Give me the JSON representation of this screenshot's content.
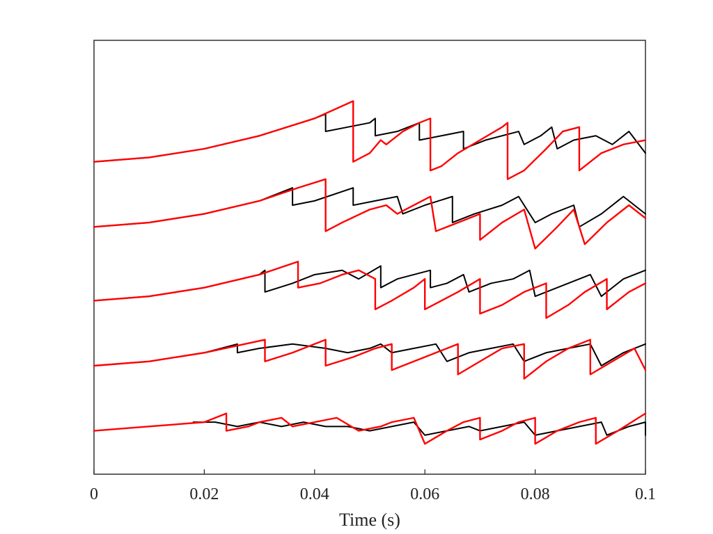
{
  "chart_data": {
    "type": "line",
    "title": "",
    "xlabel": "Time (s)",
    "ylabel": "",
    "xlim": [
      0,
      0.1
    ],
    "ylim": [
      0,
      1
    ],
    "grid": false,
    "legend": "none",
    "x_ticks": [
      0,
      0.02,
      0.04,
      0.06,
      0.08,
      0.1
    ],
    "x_tick_labels": [
      "0",
      "0.02",
      "0.04",
      "0.06",
      "0.08",
      "0.1"
    ],
    "colors": {
      "black": "#000000",
      "red": "#ff0000",
      "axis": "#222222"
    },
    "series": [
      {
        "color": "#000000",
        "values": [
          [
            0,
            0.72
          ],
          [
            0.01,
            0.73
          ],
          [
            0.02,
            0.75
          ],
          [
            0.03,
            0.78
          ],
          [
            0.04,
            0.82
          ],
          [
            0.042,
            0.83
          ],
          [
            0.042,
            0.79
          ],
          [
            0.046,
            0.8
          ],
          [
            0.05,
            0.81
          ],
          [
            0.051,
            0.82
          ],
          [
            0.051,
            0.78
          ],
          [
            0.055,
            0.79
          ],
          [
            0.059,
            0.81
          ],
          [
            0.059,
            0.77
          ],
          [
            0.063,
            0.78
          ],
          [
            0.067,
            0.79
          ],
          [
            0.067,
            0.75
          ],
          [
            0.071,
            0.77
          ],
          [
            0.077,
            0.79
          ],
          [
            0.078,
            0.76
          ],
          [
            0.081,
            0.78
          ],
          [
            0.083,
            0.8
          ],
          [
            0.084,
            0.75
          ],
          [
            0.087,
            0.77
          ],
          [
            0.091,
            0.78
          ],
          [
            0.094,
            0.76
          ],
          [
            0.097,
            0.79
          ],
          [
            0.1,
            0.74
          ]
        ]
      },
      {
        "color": "#ff0000",
        "values": [
          [
            0,
            0.72
          ],
          [
            0.01,
            0.73
          ],
          [
            0.02,
            0.75
          ],
          [
            0.03,
            0.78
          ],
          [
            0.04,
            0.82
          ],
          [
            0.047,
            0.86
          ],
          [
            0.047,
            0.72
          ],
          [
            0.05,
            0.74
          ],
          [
            0.052,
            0.77
          ],
          [
            0.053,
            0.76
          ],
          [
            0.056,
            0.79
          ],
          [
            0.059,
            0.81
          ],
          [
            0.061,
            0.82
          ],
          [
            0.061,
            0.7
          ],
          [
            0.063,
            0.71
          ],
          [
            0.066,
            0.74
          ],
          [
            0.07,
            0.77
          ],
          [
            0.074,
            0.8
          ],
          [
            0.075,
            0.81
          ],
          [
            0.075,
            0.68
          ],
          [
            0.078,
            0.7
          ],
          [
            0.082,
            0.75
          ],
          [
            0.085,
            0.79
          ],
          [
            0.088,
            0.8
          ],
          [
            0.088,
            0.7
          ],
          [
            0.092,
            0.74
          ],
          [
            0.096,
            0.76
          ],
          [
            0.1,
            0.77
          ]
        ]
      },
      {
        "color": "#000000",
        "values": [
          [
            0,
            0.57
          ],
          [
            0.01,
            0.58
          ],
          [
            0.02,
            0.6
          ],
          [
            0.03,
            0.63
          ],
          [
            0.036,
            0.66
          ],
          [
            0.036,
            0.62
          ],
          [
            0.04,
            0.63
          ],
          [
            0.047,
            0.66
          ],
          [
            0.047,
            0.62
          ],
          [
            0.051,
            0.63
          ],
          [
            0.055,
            0.64
          ],
          [
            0.056,
            0.6
          ],
          [
            0.06,
            0.62
          ],
          [
            0.065,
            0.64
          ],
          [
            0.065,
            0.58
          ],
          [
            0.069,
            0.6
          ],
          [
            0.074,
            0.62
          ],
          [
            0.077,
            0.64
          ],
          [
            0.08,
            0.58
          ],
          [
            0.083,
            0.6
          ],
          [
            0.087,
            0.62
          ],
          [
            0.088,
            0.57
          ],
          [
            0.092,
            0.6
          ],
          [
            0.096,
            0.64
          ],
          [
            0.1,
            0.6
          ]
        ]
      },
      {
        "color": "#ff0000",
        "values": [
          [
            0,
            0.57
          ],
          [
            0.01,
            0.58
          ],
          [
            0.02,
            0.6
          ],
          [
            0.03,
            0.63
          ],
          [
            0.037,
            0.66
          ],
          [
            0.042,
            0.68
          ],
          [
            0.042,
            0.56
          ],
          [
            0.045,
            0.58
          ],
          [
            0.05,
            0.61
          ],
          [
            0.053,
            0.62
          ],
          [
            0.055,
            0.6
          ],
          [
            0.058,
            0.62
          ],
          [
            0.061,
            0.64
          ],
          [
            0.062,
            0.56
          ],
          [
            0.066,
            0.58
          ],
          [
            0.07,
            0.6
          ],
          [
            0.07,
            0.54
          ],
          [
            0.074,
            0.58
          ],
          [
            0.078,
            0.61
          ],
          [
            0.08,
            0.52
          ],
          [
            0.084,
            0.57
          ],
          [
            0.087,
            0.61
          ],
          [
            0.089,
            0.53
          ],
          [
            0.093,
            0.58
          ],
          [
            0.097,
            0.62
          ],
          [
            0.1,
            0.59
          ]
        ]
      },
      {
        "color": "#000000",
        "values": [
          [
            0,
            0.4
          ],
          [
            0.01,
            0.41
          ],
          [
            0.02,
            0.43
          ],
          [
            0.03,
            0.46
          ],
          [
            0.031,
            0.47
          ],
          [
            0.031,
            0.42
          ],
          [
            0.036,
            0.44
          ],
          [
            0.04,
            0.46
          ],
          [
            0.045,
            0.47
          ],
          [
            0.048,
            0.45
          ],
          [
            0.052,
            0.48
          ],
          [
            0.052,
            0.43
          ],
          [
            0.055,
            0.45
          ],
          [
            0.061,
            0.47
          ],
          [
            0.061,
            0.43
          ],
          [
            0.064,
            0.44
          ],
          [
            0.067,
            0.46
          ],
          [
            0.068,
            0.42
          ],
          [
            0.072,
            0.44
          ],
          [
            0.076,
            0.45
          ],
          [
            0.079,
            0.47
          ],
          [
            0.08,
            0.41
          ],
          [
            0.084,
            0.43
          ],
          [
            0.09,
            0.46
          ],
          [
            0.092,
            0.41
          ],
          [
            0.096,
            0.45
          ],
          [
            0.1,
            0.47
          ]
        ]
      },
      {
        "color": "#ff0000",
        "values": [
          [
            0,
            0.4
          ],
          [
            0.01,
            0.41
          ],
          [
            0.02,
            0.43
          ],
          [
            0.03,
            0.46
          ],
          [
            0.037,
            0.49
          ],
          [
            0.037,
            0.43
          ],
          [
            0.041,
            0.44
          ],
          [
            0.045,
            0.46
          ],
          [
            0.048,
            0.47
          ],
          [
            0.051,
            0.45
          ],
          [
            0.051,
            0.38
          ],
          [
            0.054,
            0.4
          ],
          [
            0.058,
            0.43
          ],
          [
            0.06,
            0.45
          ],
          [
            0.06,
            0.38
          ],
          [
            0.063,
            0.4
          ],
          [
            0.066,
            0.42
          ],
          [
            0.07,
            0.45
          ],
          [
            0.07,
            0.37
          ],
          [
            0.074,
            0.39
          ],
          [
            0.078,
            0.42
          ],
          [
            0.082,
            0.44
          ],
          [
            0.082,
            0.36
          ],
          [
            0.086,
            0.39
          ],
          [
            0.089,
            0.42
          ],
          [
            0.093,
            0.45
          ],
          [
            0.093,
            0.38
          ],
          [
            0.097,
            0.42
          ],
          [
            0.1,
            0.44
          ]
        ]
      },
      {
        "color": "#000000",
        "values": [
          [
            0,
            0.25
          ],
          [
            0.01,
            0.26
          ],
          [
            0.02,
            0.28
          ],
          [
            0.026,
            0.3
          ],
          [
            0.026,
            0.28
          ],
          [
            0.03,
            0.29
          ],
          [
            0.036,
            0.3
          ],
          [
            0.042,
            0.29
          ],
          [
            0.046,
            0.28
          ],
          [
            0.05,
            0.29
          ],
          [
            0.052,
            0.3
          ],
          [
            0.054,
            0.28
          ],
          [
            0.058,
            0.29
          ],
          [
            0.062,
            0.3
          ],
          [
            0.064,
            0.26
          ],
          [
            0.068,
            0.28
          ],
          [
            0.072,
            0.29
          ],
          [
            0.076,
            0.3
          ],
          [
            0.078,
            0.26
          ],
          [
            0.082,
            0.28
          ],
          [
            0.086,
            0.29
          ],
          [
            0.09,
            0.3
          ],
          [
            0.092,
            0.25
          ],
          [
            0.096,
            0.28
          ],
          [
            0.1,
            0.3
          ]
        ]
      },
      {
        "color": "#ff0000",
        "values": [
          [
            0,
            0.25
          ],
          [
            0.01,
            0.26
          ],
          [
            0.02,
            0.28
          ],
          [
            0.031,
            0.31
          ],
          [
            0.031,
            0.26
          ],
          [
            0.036,
            0.28
          ],
          [
            0.04,
            0.3
          ],
          [
            0.042,
            0.31
          ],
          [
            0.042,
            0.25
          ],
          [
            0.047,
            0.27
          ],
          [
            0.051,
            0.29
          ],
          [
            0.054,
            0.3
          ],
          [
            0.054,
            0.24
          ],
          [
            0.058,
            0.26
          ],
          [
            0.062,
            0.28
          ],
          [
            0.066,
            0.3
          ],
          [
            0.066,
            0.23
          ],
          [
            0.07,
            0.26
          ],
          [
            0.074,
            0.29
          ],
          [
            0.078,
            0.3
          ],
          [
            0.078,
            0.22
          ],
          [
            0.082,
            0.26
          ],
          [
            0.086,
            0.29
          ],
          [
            0.09,
            0.31
          ],
          [
            0.09,
            0.23
          ],
          [
            0.094,
            0.26
          ],
          [
            0.098,
            0.29
          ],
          [
            0.1,
            0.24
          ]
        ]
      },
      {
        "color": "#000000",
        "values": [
          [
            0.018,
            0.12
          ],
          [
            0.022,
            0.12
          ],
          [
            0.026,
            0.11
          ],
          [
            0.03,
            0.12
          ],
          [
            0.034,
            0.11
          ],
          [
            0.038,
            0.12
          ],
          [
            0.042,
            0.11
          ],
          [
            0.046,
            0.11
          ],
          [
            0.05,
            0.1
          ],
          [
            0.054,
            0.11
          ],
          [
            0.058,
            0.12
          ],
          [
            0.06,
            0.09
          ],
          [
            0.064,
            0.1
          ],
          [
            0.068,
            0.11
          ],
          [
            0.07,
            0.1
          ],
          [
            0.074,
            0.11
          ],
          [
            0.078,
            0.12
          ],
          [
            0.08,
            0.09
          ],
          [
            0.084,
            0.1
          ],
          [
            0.088,
            0.11
          ],
          [
            0.092,
            0.12
          ],
          [
            0.093,
            0.09
          ],
          [
            0.097,
            0.11
          ],
          [
            0.1,
            0.12
          ],
          [
            0.1,
            0.09
          ]
        ]
      },
      {
        "color": "#ff0000",
        "values": [
          [
            0,
            0.1
          ],
          [
            0.01,
            0.11
          ],
          [
            0.02,
            0.12
          ],
          [
            0.024,
            0.14
          ],
          [
            0.024,
            0.1
          ],
          [
            0.028,
            0.11
          ],
          [
            0.03,
            0.12
          ],
          [
            0.034,
            0.13
          ],
          [
            0.036,
            0.11
          ],
          [
            0.04,
            0.12
          ],
          [
            0.044,
            0.13
          ],
          [
            0.048,
            0.1
          ],
          [
            0.052,
            0.11
          ],
          [
            0.054,
            0.12
          ],
          [
            0.058,
            0.13
          ],
          [
            0.06,
            0.07
          ],
          [
            0.064,
            0.1
          ],
          [
            0.067,
            0.12
          ],
          [
            0.07,
            0.13
          ],
          [
            0.07,
            0.08
          ],
          [
            0.074,
            0.1
          ],
          [
            0.077,
            0.12
          ],
          [
            0.08,
            0.13
          ],
          [
            0.08,
            0.07
          ],
          [
            0.084,
            0.1
          ],
          [
            0.088,
            0.12
          ],
          [
            0.091,
            0.13
          ],
          [
            0.091,
            0.07
          ],
          [
            0.095,
            0.1
          ],
          [
            0.1,
            0.14
          ]
        ]
      }
    ]
  }
}
